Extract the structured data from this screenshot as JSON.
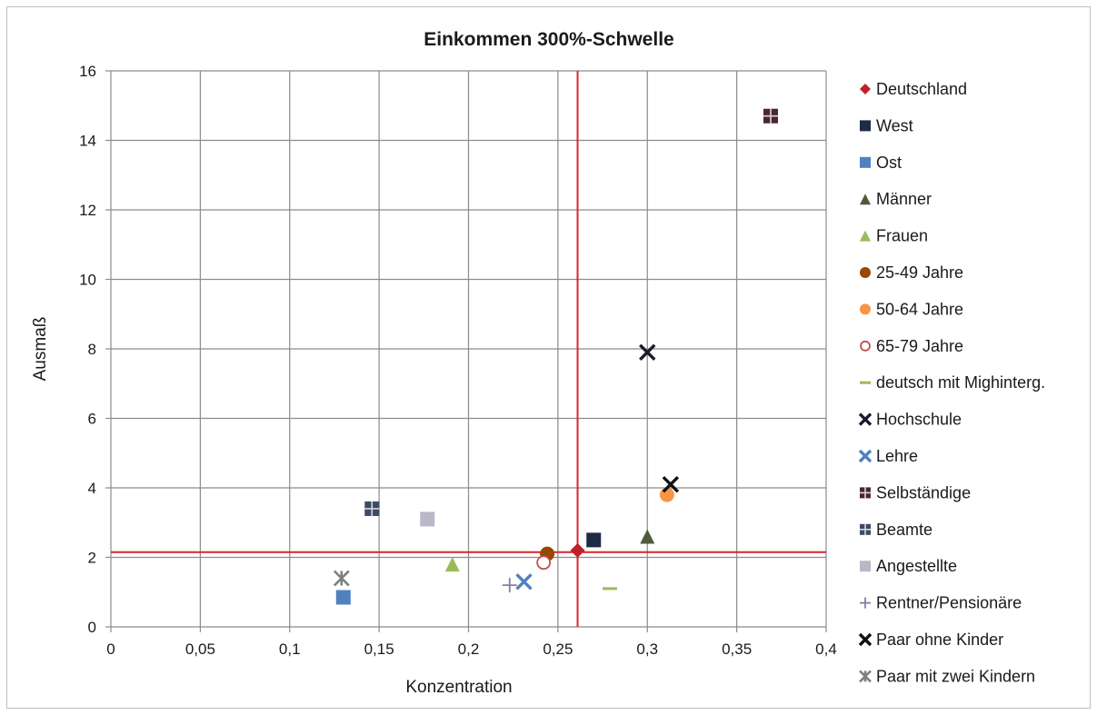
{
  "chart_data": {
    "type": "scatter",
    "title": "Einkommen 300%-Schwelle",
    "xlabel": "Konzentration",
    "ylabel": "Ausmaß",
    "xlim": [
      0,
      0.4
    ],
    "ylim": [
      0,
      16
    ],
    "x_ticks": [
      0,
      0.05,
      0.1,
      0.15,
      0.2,
      0.25,
      0.3,
      0.35,
      0.4
    ],
    "x_tick_labels": [
      "0",
      "0,05",
      "0,1",
      "0,15",
      "0,2",
      "0,25",
      "0,3",
      "0,35",
      "0,4"
    ],
    "y_ticks": [
      0,
      2,
      4,
      6,
      8,
      10,
      12,
      14,
      16
    ],
    "y_tick_labels": [
      "0",
      "2",
      "4",
      "6",
      "8",
      "10",
      "12",
      "14",
      "16"
    ],
    "grid": true,
    "legend_position": "right",
    "reference_lines": {
      "vertical_x": 0.261,
      "horizontal_y": 2.15,
      "color": "#d9262b"
    },
    "series": [
      {
        "name": "Deutschland",
        "marker": "diamond",
        "color": "#c0202a",
        "points": [
          [
            0.261,
            2.2
          ]
        ]
      },
      {
        "name": "West",
        "marker": "square",
        "color": "#1f2a44",
        "points": [
          [
            0.27,
            2.5
          ]
        ]
      },
      {
        "name": "Ost",
        "marker": "square",
        "color": "#4f81bd",
        "points": [
          [
            0.13,
            0.85
          ]
        ]
      },
      {
        "name": "Männer",
        "marker": "triangle",
        "color": "#4f5a3c",
        "points": [
          [
            0.3,
            2.6
          ]
        ]
      },
      {
        "name": "Frauen",
        "marker": "triangle",
        "color": "#9bbb59",
        "points": [
          [
            0.191,
            1.8
          ]
        ]
      },
      {
        "name": "25-49 Jahre",
        "marker": "circle",
        "color": "#974706",
        "points": [
          [
            0.244,
            2.1
          ]
        ]
      },
      {
        "name": "50-64 Jahre",
        "marker": "circle",
        "color": "#f79646",
        "points": [
          [
            0.311,
            3.8
          ]
        ]
      },
      {
        "name": "65-79 Jahre",
        "marker": "circle-open",
        "color": "#c0504d",
        "points": [
          [
            0.242,
            1.85
          ]
        ]
      },
      {
        "name": "deutsch mit Mighinterg.",
        "marker": "dash",
        "color": "#9bbb59",
        "points": [
          [
            0.279,
            1.1
          ]
        ]
      },
      {
        "name": "Hochschule",
        "marker": "x",
        "color": "#1a1a2e",
        "points": [
          [
            0.3,
            7.9
          ]
        ]
      },
      {
        "name": "Lehre",
        "marker": "x",
        "color": "#4f81bd",
        "points": [
          [
            0.231,
            1.3
          ]
        ]
      },
      {
        "name": "Selbständige",
        "marker": "square-plus",
        "color": "#4b2630",
        "points": [
          [
            0.369,
            14.7
          ]
        ]
      },
      {
        "name": "Beamte",
        "marker": "square-plus",
        "color": "#3d4a66",
        "points": [
          [
            0.146,
            3.4
          ]
        ]
      },
      {
        "name": "Angestellte",
        "marker": "square",
        "color": "#b8b8c8",
        "points": [
          [
            0.177,
            3.1
          ]
        ]
      },
      {
        "name": "Rentner/Pensionäre",
        "marker": "plus",
        "color": "#7f7fa8",
        "points": [
          [
            0.223,
            1.2
          ]
        ]
      },
      {
        "name": "Paar ohne Kinder",
        "marker": "x",
        "color": "#111111",
        "points": [
          [
            0.313,
            4.1
          ]
        ]
      },
      {
        "name": "Paar mit zwei Kindern",
        "marker": "star",
        "color": "#7f7f7f",
        "points": [
          [
            0.129,
            1.4
          ]
        ]
      }
    ]
  }
}
